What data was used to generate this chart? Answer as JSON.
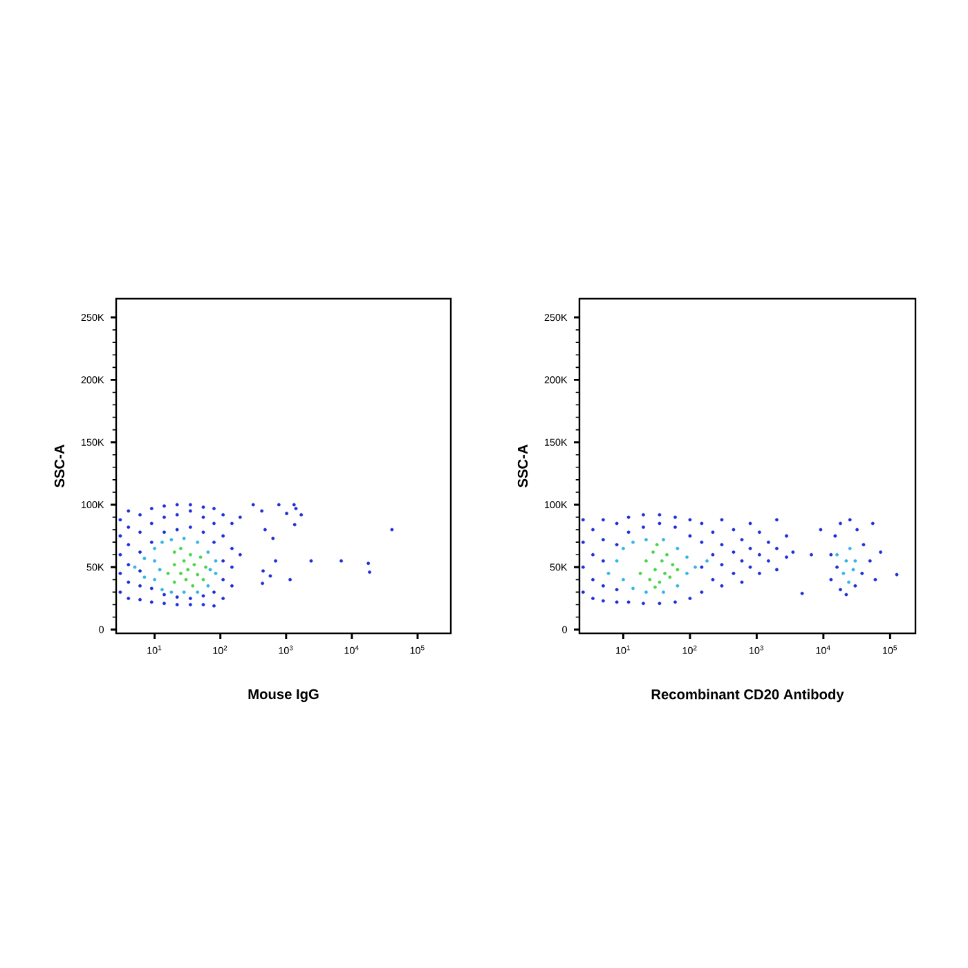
{
  "chart_data": [
    {
      "type": "scatter",
      "xlabel": "Mouse IgG",
      "ylabel": "SSC-A",
      "log": "x",
      "marker": "circle",
      "xlim": [
        2.6,
        320000
      ],
      "ylim": [
        -3000,
        265000
      ],
      "xticks": [
        {
          "value": 10,
          "label": "10$^{1}$"
        },
        {
          "value": 100,
          "label": "10$^{2}$"
        },
        {
          "value": 1000,
          "label": "10$^{3}$"
        },
        {
          "value": 10000,
          "label": "10$^{4}$"
        },
        {
          "value": 100000,
          "label": "10$^{5}$"
        }
      ],
      "yticks": [
        0,
        {
          "value": 50000,
          "label": "50K"
        },
        {
          "value": 100000,
          "label": "100K"
        },
        {
          "value": 150000,
          "label": "150K"
        },
        {
          "value": 200000,
          "label": "200K"
        },
        {
          "value": 250000,
          "label": "250K"
        }
      ],
      "series": [
        {
          "color": "#1f2fd8",
          "x": [
            3,
            3,
            3,
            3,
            3,
            4,
            4,
            4,
            4,
            4,
            4,
            6,
            6,
            6,
            6,
            6,
            6,
            9,
            9,
            9,
            9,
            9,
            14,
            14,
            14,
            14,
            14,
            22,
            22,
            22,
            22,
            22,
            35,
            35,
            35,
            35,
            35,
            55,
            55,
            55,
            55,
            55,
            80,
            80,
            80,
            80,
            80,
            110,
            110,
            110,
            110,
            110,
            150,
            150,
            150,
            150,
            200,
            200,
            316,
            427,
            776,
            1320,
            1410,
            1700,
            1020,
            479,
            631,
            1350,
            692,
            2400,
            6900,
            17800,
            18600,
            40700,
            1150,
            437,
            575,
            447
          ],
          "values": [
            30000,
            45000,
            60000,
            75000,
            88000,
            25000,
            38000,
            52000,
            68000,
            82000,
            95000,
            24000,
            35000,
            47000,
            62000,
            78000,
            92000,
            22000,
            33000,
            70000,
            85000,
            97000,
            21000,
            28000,
            78000,
            90000,
            99000,
            20000,
            26000,
            80000,
            92000,
            100000,
            20000,
            25000,
            82000,
            95000,
            100000,
            20000,
            27000,
            78000,
            90000,
            98000,
            19000,
            30000,
            70000,
            85000,
            97000,
            25000,
            40000,
            55000,
            75000,
            92000,
            35000,
            50000,
            65000,
            85000,
            60000,
            90000,
            100000,
            95000,
            100000,
            100000,
            97000,
            92000,
            93000,
            80000,
            73000,
            84000,
            55000,
            55000,
            55000,
            53000,
            46000,
            80000,
            40000,
            37000,
            43000,
            47000
          ]
        },
        {
          "color": "#33b5e5",
          "x": [
            5,
            7,
            7,
            10,
            10,
            10,
            13,
            13,
            18,
            18,
            28,
            28,
            45,
            45,
            65,
            65,
            85,
            85,
            12,
            70
          ],
          "values": [
            50000,
            42000,
            57000,
            40000,
            55000,
            65000,
            32000,
            70000,
            30000,
            72000,
            30000,
            73000,
            30000,
            70000,
            35000,
            62000,
            45000,
            55000,
            48000,
            48000
          ]
        },
        {
          "color": "#4cd44a",
          "x": [
            16,
            20,
            20,
            20,
            25,
            28,
            30,
            32,
            35,
            38,
            40,
            45,
            50,
            55,
            25,
            60
          ],
          "values": [
            45000,
            38000,
            52000,
            62000,
            45000,
            55000,
            40000,
            48000,
            60000,
            35000,
            52000,
            44000,
            58000,
            40000,
            65000,
            50000
          ]
        }
      ]
    },
    {
      "type": "scatter",
      "xlabel": "Recombinant CD20 Antibody",
      "ylabel": "SSC-A",
      "log": "x",
      "marker": "circle",
      "xlim": [
        2.2,
        240000
      ],
      "ylim": [
        -3000,
        265000
      ],
      "xticks": [
        {
          "value": 10,
          "label": "10$^{1}$"
        },
        {
          "value": 100,
          "label": "10$^{2}$"
        },
        {
          "value": 1000,
          "label": "10$^{3}$"
        },
        {
          "value": 10000,
          "label": "10$^{4}$"
        },
        {
          "value": 100000,
          "label": "10$^{5}$"
        }
      ],
      "yticks": [
        0,
        {
          "value": 50000,
          "label": "50K"
        },
        {
          "value": 100000,
          "label": "100K"
        },
        {
          "value": 150000,
          "label": "150K"
        },
        {
          "value": 200000,
          "label": "200K"
        },
        {
          "value": 250000,
          "label": "250K"
        }
      ],
      "series": [
        {
          "color": "#1f2fd8",
          "x": [
            2.5,
            2.5,
            2.5,
            2.5,
            3.5,
            3.5,
            3.5,
            3.5,
            5,
            5,
            5,
            5,
            5,
            8,
            8,
            8,
            8,
            12,
            12,
            12,
            20,
            20,
            20,
            35,
            35,
            35,
            60,
            60,
            60,
            100,
            100,
            100,
            150,
            150,
            150,
            150,
            220,
            220,
            220,
            300,
            300,
            300,
            300,
            450,
            450,
            450,
            600,
            600,
            600,
            800,
            800,
            800,
            1100,
            1100,
            1100,
            1500,
            1500,
            2000,
            2000,
            2000,
            2800,
            2800,
            3500,
            4800,
            6600,
            9100,
            13000,
            13000,
            15000,
            16000,
            18000,
            18000,
            22000,
            25000,
            30000,
            32000,
            38000,
            40000,
            50000,
            55000,
            60000,
            72000,
            126000
          ],
          "values": [
            30000,
            50000,
            70000,
            88000,
            25000,
            40000,
            60000,
            80000,
            23000,
            35000,
            55000,
            72000,
            88000,
            22000,
            32000,
            68000,
            85000,
            22000,
            78000,
            90000,
            21000,
            82000,
            92000,
            21000,
            85000,
            92000,
            22000,
            82000,
            90000,
            25000,
            75000,
            88000,
            30000,
            50000,
            70000,
            85000,
            40000,
            60000,
            78000,
            35000,
            52000,
            68000,
            88000,
            45000,
            62000,
            80000,
            38000,
            55000,
            72000,
            50000,
            65000,
            85000,
            45000,
            60000,
            78000,
            55000,
            70000,
            48000,
            65000,
            88000,
            58000,
            75000,
            62000,
            29000,
            60000,
            80000,
            40000,
            60000,
            75000,
            50000,
            32000,
            85000,
            28000,
            88000,
            35000,
            80000,
            45000,
            68000,
            55000,
            85000,
            40000,
            62000,
            44000
          ]
        },
        {
          "color": "#33b5e5",
          "x": [
            6,
            8,
            10,
            10,
            14,
            14,
            22,
            22,
            40,
            40,
            65,
            65,
            90,
            90,
            120,
            180,
            16000,
            20000,
            22000,
            25000,
            28000,
            30000,
            24000
          ],
          "values": [
            45000,
            55000,
            40000,
            65000,
            33000,
            70000,
            30000,
            72000,
            30000,
            72000,
            35000,
            65000,
            45000,
            58000,
            50000,
            55000,
            60000,
            45000,
            55000,
            65000,
            48000,
            55000,
            38000
          ]
        },
        {
          "color": "#4cd44a",
          "x": [
            18,
            22,
            25,
            28,
            30,
            35,
            38,
            42,
            45,
            50,
            55,
            65,
            32,
            30
          ],
          "values": [
            45000,
            55000,
            40000,
            62000,
            48000,
            38000,
            55000,
            45000,
            60000,
            42000,
            52000,
            48000,
            68000,
            34000
          ]
        }
      ]
    }
  ]
}
